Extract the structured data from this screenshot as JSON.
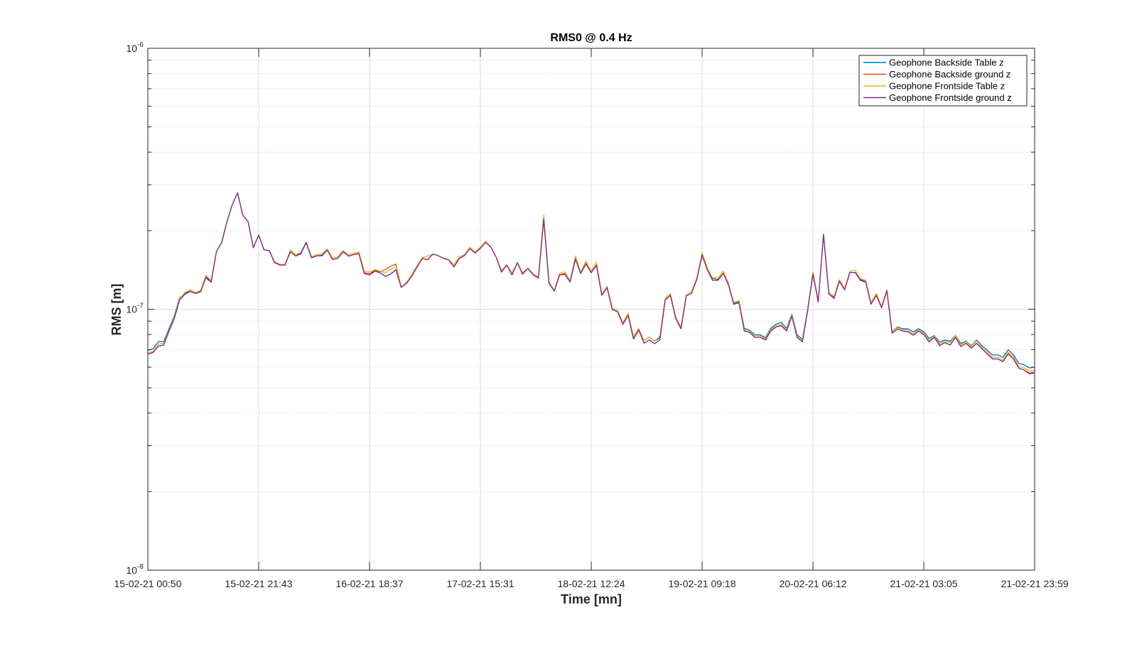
{
  "chart_data": {
    "type": "line",
    "title": "RMS0 @ 0.4 Hz",
    "xlabel": "Time [mn]",
    "ylabel": "RMS [m]",
    "yscale": "log",
    "ylim": [
      1e-08,
      1e-06
    ],
    "y_ticks": [
      {
        "value": 1e-06,
        "base": "10",
        "exp": "-6"
      },
      {
        "value": 1e-07,
        "base": "10",
        "exp": "-7"
      },
      {
        "value": 1e-08,
        "base": "10",
        "exp": "-8"
      }
    ],
    "x_tick_labels": [
      "15-02-21 00:50",
      "15-02-21 21:43",
      "16-02-21 18:37",
      "17-02-21 15:31",
      "18-02-21 12:24",
      "19-02-21 09:18",
      "20-02-21 06:12",
      "21-02-21 03:05",
      "21-02-21 23:59"
    ],
    "grid": true,
    "legend_position": "top-right",
    "x": [
      0,
      1,
      2,
      3,
      4,
      5,
      6,
      7,
      8,
      9,
      10,
      11,
      12,
      13,
      14,
      15,
      16,
      17,
      18,
      19,
      20,
      21,
      22,
      23,
      24,
      25,
      26,
      27,
      28,
      29,
      30,
      31,
      32,
      33,
      34,
      35,
      36,
      37,
      38,
      39,
      40,
      41,
      42,
      43,
      44,
      45,
      46,
      47,
      48,
      49,
      50,
      51,
      52,
      53,
      54,
      55,
      56,
      57,
      58,
      59,
      60,
      61,
      62,
      63,
      64,
      65,
      66,
      67,
      68,
      69,
      70,
      71,
      72,
      73,
      74,
      75,
      76,
      77,
      78,
      79,
      80,
      81,
      82,
      83,
      84,
      85,
      86,
      87,
      88,
      89,
      90,
      91,
      92,
      93,
      94,
      95,
      96,
      97,
      98,
      99,
      100,
      101,
      102,
      103,
      104,
      105,
      106,
      107,
      108,
      109,
      110,
      111,
      112,
      113,
      114,
      115,
      116,
      117,
      118,
      119,
      120,
      121,
      122,
      123,
      124,
      125,
      126,
      127,
      128,
      129,
      130,
      131,
      132,
      133,
      134,
      135,
      136,
      137,
      138,
      139,
      140,
      141,
      142,
      143,
      144,
      145,
      146,
      147,
      148,
      149,
      150,
      151,
      152,
      153,
      154,
      155,
      156,
      157,
      158,
      159,
      160,
      161,
      162,
      163,
      164,
      165,
      166,
      167,
      168
    ],
    "series": [
      {
        "name": "Geophone Backside Table z",
        "color": "#0072BD",
        "values": [
          6.96e-08,
          7.06e-08,
          7.51e-08,
          7.51e-08,
          8.42e-08,
          9.41e-08,
          1.104e-07,
          1.151e-07,
          1.174e-07,
          1.152e-07,
          1.174e-07,
          1.336e-07,
          1.276e-07,
          1.665e-07,
          1.804e-07,
          2.166e-07,
          2.518e-07,
          2.792e-07,
          2.289e-07,
          2.165e-07,
          1.72e-07,
          1.927e-07,
          1.69e-07,
          1.678e-07,
          1.52e-07,
          1.487e-07,
          1.487e-07,
          1.661e-07,
          1.6e-07,
          1.628e-07,
          1.804e-07,
          1.582e-07,
          1.601e-07,
          1.601e-07,
          1.684e-07,
          1.55e-07,
          1.569e-07,
          1.661e-07,
          1.599e-07,
          1.619e-07,
          1.639e-07,
          1.371e-07,
          1.353e-07,
          1.399e-07,
          1.381e-07,
          1.337e-07,
          1.364e-07,
          1.417e-07,
          1.213e-07,
          1.256e-07,
          1.339e-07,
          1.451e-07,
          1.567e-07,
          1.547e-07,
          1.626e-07,
          1.606e-07,
          1.567e-07,
          1.547e-07,
          1.453e-07,
          1.567e-07,
          1.607e-07,
          1.707e-07,
          1.643e-07,
          1.712e-07,
          1.805e-07,
          1.73e-07,
          1.582e-07,
          1.388e-07,
          1.476e-07,
          1.354e-07,
          1.509e-07,
          1.363e-07,
          1.436e-07,
          1.353e-07,
          1.318e-07,
          2.218e-07,
          1.259e-07,
          1.174e-07,
          1.354e-07,
          1.361e-07,
          1.272e-07,
          1.558e-07,
          1.372e-07,
          1.491e-07,
          1.381e-07,
          1.473e-07,
          1.131e-07,
          1.21e-07,
          9.97e-08,
          9.78e-08,
          8.76e-08,
          9.48e-08,
          7.7e-08,
          8.33e-08,
          7.6e-08,
          7.82e-08,
          7.54e-08,
          7.78e-08,
          1.086e-07,
          1.131e-07,
          9.23e-08,
          8.42e-08,
          1.125e-07,
          1.151e-07,
          1.301e-07,
          1.615e-07,
          1.415e-07,
          1.31e-07,
          1.301e-07,
          1.373e-07,
          1.24e-07,
          1.055e-07,
          1.07e-07,
          8.45e-08,
          8.31e-08,
          7.98e-08,
          7.98e-08,
          7.78e-08,
          8.45e-08,
          8.76e-08,
          8.91e-08,
          8.45e-08,
          9.59e-08,
          7.98e-08,
          7.67e-08,
          1.001e-07,
          1.367e-07,
          1.066e-07,
          1.937e-07,
          1.164e-07,
          1.11e-07,
          1.283e-07,
          1.187e-07,
          1.384e-07,
          1.384e-07,
          1.301e-07,
          1.283e-07,
          1.055e-07,
          1.131e-07,
          1.023e-07,
          1.177e-07,
          8.2e-08,
          8.55e-08,
          8.42e-08,
          8.42e-08,
          8.18e-08,
          8.42e-08,
          8.2e-08,
          7.73e-08,
          7.93e-08,
          7.48e-08,
          7.62e-08,
          7.54e-08,
          7.93e-08,
          7.39e-08,
          7.54e-08,
          7.24e-08,
          7.62e-08,
          7.24e-08,
          6.97e-08,
          6.68e-08,
          6.68e-08,
          6.54e-08,
          7e-08,
          6.68e-08,
          6.2e-08,
          6.12e-08,
          5.96e-08,
          6e-08
        ]
      },
      {
        "name": "Geophone Backside ground z",
        "color": "#D95319",
        "values": [
          6.72e-08,
          6.83e-08,
          7.22e-08,
          7.29e-08,
          8.22e-08,
          9.19e-08,
          1.082e-07,
          1.14e-07,
          1.17e-07,
          1.15e-07,
          1.166e-07,
          1.32e-07,
          1.27e-07,
          1.665e-07,
          1.804e-07,
          2.166e-07,
          2.518e-07,
          2.792e-07,
          2.289e-07,
          2.165e-07,
          1.72e-07,
          1.927e-07,
          1.69e-07,
          1.678e-07,
          1.51e-07,
          1.477e-07,
          1.477e-07,
          1.661e-07,
          1.6e-07,
          1.64e-07,
          1.792e-07,
          1.575e-07,
          1.601e-07,
          1.61e-07,
          1.684e-07,
          1.55e-07,
          1.569e-07,
          1.661e-07,
          1.599e-07,
          1.619e-07,
          1.639e-07,
          1.381e-07,
          1.37e-07,
          1.409e-07,
          1.391e-07,
          1.42e-07,
          1.46e-07,
          1.49e-07,
          1.213e-07,
          1.256e-07,
          1.339e-07,
          1.451e-07,
          1.567e-07,
          1.547e-07,
          1.626e-07,
          1.606e-07,
          1.567e-07,
          1.547e-07,
          1.453e-07,
          1.567e-07,
          1.607e-07,
          1.707e-07,
          1.643e-07,
          1.712e-07,
          1.805e-07,
          1.73e-07,
          1.582e-07,
          1.388e-07,
          1.476e-07,
          1.354e-07,
          1.509e-07,
          1.363e-07,
          1.436e-07,
          1.353e-07,
          1.318e-07,
          2.218e-07,
          1.259e-07,
          1.174e-07,
          1.354e-07,
          1.371e-07,
          1.272e-07,
          1.568e-07,
          1.372e-07,
          1.501e-07,
          1.381e-07,
          1.483e-07,
          1.131e-07,
          1.21e-07,
          9.97e-08,
          9.78e-08,
          8.76e-08,
          9.48e-08,
          7.7e-08,
          8.33e-08,
          7.41e-08,
          7.62e-08,
          7.38e-08,
          7.62e-08,
          1.086e-07,
          1.131e-07,
          9.23e-08,
          8.42e-08,
          1.125e-07,
          1.151e-07,
          1.301e-07,
          1.615e-07,
          1.415e-07,
          1.29e-07,
          1.29e-07,
          1.373e-07,
          1.24e-07,
          1.045e-07,
          1.06e-07,
          8.25e-08,
          8.15e-08,
          7.8e-08,
          7.8e-08,
          7.62e-08,
          8.25e-08,
          8.55e-08,
          8.65e-08,
          8.25e-08,
          9.4e-08,
          7.8e-08,
          7.5e-08,
          9.9e-08,
          1.367e-07,
          1.066e-07,
          1.937e-07,
          1.145e-07,
          1.1e-07,
          1.283e-07,
          1.187e-07,
          1.384e-07,
          1.384e-07,
          1.29e-07,
          1.27e-07,
          1.045e-07,
          1.131e-07,
          1.013e-07,
          1.177e-07,
          8.1e-08,
          8.4e-08,
          8.25e-08,
          8.2e-08,
          7.95e-08,
          8.25e-08,
          8e-08,
          7.5e-08,
          7.8e-08,
          7.25e-08,
          7.45e-08,
          7.3e-08,
          7.8e-08,
          7.2e-08,
          7.4e-08,
          7.1e-08,
          7.4e-08,
          7.05e-08,
          6.75e-08,
          6.45e-08,
          6.45e-08,
          6.3e-08,
          6.75e-08,
          6.45e-08,
          5.95e-08,
          5.85e-08,
          5.7e-08,
          5.75e-08
        ]
      },
      {
        "name": "Geophone Frontside Table z",
        "color": "#EDB120",
        "values": [
          6.8e-08,
          6.9e-08,
          7.35e-08,
          7.4e-08,
          8.3e-08,
          9.3e-08,
          1.095e-07,
          1.16e-07,
          1.19e-07,
          1.16e-07,
          1.18e-07,
          1.35e-07,
          1.29e-07,
          1.665e-07,
          1.804e-07,
          2.166e-07,
          2.518e-07,
          2.792e-07,
          2.289e-07,
          2.165e-07,
          1.72e-07,
          1.927e-07,
          1.69e-07,
          1.678e-07,
          1.52e-07,
          1.487e-07,
          1.487e-07,
          1.69e-07,
          1.62e-07,
          1.65e-07,
          1.804e-07,
          1.59e-07,
          1.62e-07,
          1.63e-07,
          1.7e-07,
          1.57e-07,
          1.59e-07,
          1.68e-07,
          1.62e-07,
          1.64e-07,
          1.66e-07,
          1.4e-07,
          1.39e-07,
          1.42e-07,
          1.4e-07,
          1.38e-07,
          1.42e-07,
          1.46e-07,
          1.213e-07,
          1.27e-07,
          1.36e-07,
          1.47e-07,
          1.58e-07,
          1.6e-07,
          1.626e-07,
          1.606e-07,
          1.567e-07,
          1.547e-07,
          1.48e-07,
          1.59e-07,
          1.62e-07,
          1.73e-07,
          1.66e-07,
          1.73e-07,
          1.82e-07,
          1.73e-07,
          1.582e-07,
          1.41e-07,
          1.476e-07,
          1.38e-07,
          1.509e-07,
          1.38e-07,
          1.436e-07,
          1.37e-07,
          1.33e-07,
          2.3e-07,
          1.27e-07,
          1.18e-07,
          1.37e-07,
          1.39e-07,
          1.29e-07,
          1.6e-07,
          1.39e-07,
          1.53e-07,
          1.4e-07,
          1.52e-07,
          1.14e-07,
          1.225e-07,
          1.01e-07,
          9.9e-08,
          8.9e-08,
          9.65e-08,
          7.85e-08,
          8.45e-08,
          7.6e-08,
          7.8e-08,
          7.55e-08,
          7.9e-08,
          1.1e-07,
          1.15e-07,
          9.35e-08,
          8.55e-08,
          1.14e-07,
          1.17e-07,
          1.32e-07,
          1.65e-07,
          1.44e-07,
          1.32e-07,
          1.32e-07,
          1.4e-07,
          1.26e-07,
          1.06e-07,
          1.08e-07,
          8.35e-08,
          8.25e-08,
          7.9e-08,
          7.9e-08,
          7.7e-08,
          8.35e-08,
          8.65e-08,
          8.75e-08,
          8.35e-08,
          9.55e-08,
          7.9e-08,
          7.6e-08,
          1e-07,
          1.39e-07,
          1.08e-07,
          1.937e-07,
          1.16e-07,
          1.12e-07,
          1.3e-07,
          1.2e-07,
          1.4e-07,
          1.41e-07,
          1.31e-07,
          1.29e-07,
          1.06e-07,
          1.15e-07,
          1.03e-07,
          1.19e-07,
          8.2e-08,
          8.5e-08,
          8.35e-08,
          8.3e-08,
          8.05e-08,
          8.35e-08,
          8.1e-08,
          7.6e-08,
          7.9e-08,
          7.35e-08,
          7.55e-08,
          7.45e-08,
          7.9e-08,
          7.3e-08,
          7.5e-08,
          7.2e-08,
          7.55e-08,
          7.15e-08,
          6.85e-08,
          6.55e-08,
          6.55e-08,
          6.4e-08,
          6.85e-08,
          6.55e-08,
          6.05e-08,
          5.95e-08,
          5.8e-08,
          5.85e-08
        ]
      },
      {
        "name": "Geophone Frontside ground z",
        "color": "#7E2F8E",
        "values": [
          6.72e-08,
          6.83e-08,
          7.22e-08,
          7.29e-08,
          8.22e-08,
          9.19e-08,
          1.082e-07,
          1.14e-07,
          1.17e-07,
          1.15e-07,
          1.166e-07,
          1.32e-07,
          1.27e-07,
          1.665e-07,
          1.804e-07,
          2.166e-07,
          2.518e-07,
          2.792e-07,
          2.289e-07,
          2.165e-07,
          1.72e-07,
          1.927e-07,
          1.69e-07,
          1.678e-07,
          1.51e-07,
          1.477e-07,
          1.477e-07,
          1.661e-07,
          1.6e-07,
          1.64e-07,
          1.804e-07,
          1.575e-07,
          1.601e-07,
          1.61e-07,
          1.684e-07,
          1.55e-07,
          1.569e-07,
          1.661e-07,
          1.599e-07,
          1.619e-07,
          1.63e-07,
          1.371e-07,
          1.353e-07,
          1.399e-07,
          1.381e-07,
          1.337e-07,
          1.364e-07,
          1.417e-07,
          1.213e-07,
          1.256e-07,
          1.339e-07,
          1.451e-07,
          1.567e-07,
          1.547e-07,
          1.626e-07,
          1.606e-07,
          1.567e-07,
          1.547e-07,
          1.453e-07,
          1.567e-07,
          1.607e-07,
          1.707e-07,
          1.643e-07,
          1.712e-07,
          1.805e-07,
          1.73e-07,
          1.582e-07,
          1.388e-07,
          1.476e-07,
          1.354e-07,
          1.509e-07,
          1.363e-07,
          1.436e-07,
          1.353e-07,
          1.318e-07,
          2.218e-07,
          1.259e-07,
          1.174e-07,
          1.354e-07,
          1.361e-07,
          1.272e-07,
          1.558e-07,
          1.372e-07,
          1.491e-07,
          1.381e-07,
          1.473e-07,
          1.131e-07,
          1.21e-07,
          9.97e-08,
          9.78e-08,
          8.76e-08,
          9.48e-08,
          7.7e-08,
          8.33e-08,
          7.41e-08,
          7.62e-08,
          7.38e-08,
          7.62e-08,
          1.086e-07,
          1.131e-07,
          9.23e-08,
          8.42e-08,
          1.125e-07,
          1.151e-07,
          1.301e-07,
          1.615e-07,
          1.415e-07,
          1.29e-07,
          1.29e-07,
          1.373e-07,
          1.24e-07,
          1.045e-07,
          1.06e-07,
          8.25e-08,
          8.15e-08,
          7.8e-08,
          7.8e-08,
          7.62e-08,
          8.25e-08,
          8.55e-08,
          8.65e-08,
          8.25e-08,
          9.4e-08,
          7.8e-08,
          7.5e-08,
          9.9e-08,
          1.367e-07,
          1.066e-07,
          1.937e-07,
          1.145e-07,
          1.1e-07,
          1.283e-07,
          1.187e-07,
          1.384e-07,
          1.384e-07,
          1.29e-07,
          1.27e-07,
          1.045e-07,
          1.131e-07,
          1.013e-07,
          1.177e-07,
          8.1e-08,
          8.4e-08,
          8.25e-08,
          8.2e-08,
          7.95e-08,
          8.25e-08,
          8e-08,
          7.5e-08,
          7.8e-08,
          7.25e-08,
          7.45e-08,
          7.3e-08,
          7.8e-08,
          7.2e-08,
          7.4e-08,
          7.1e-08,
          7.4e-08,
          7.05e-08,
          6.75e-08,
          6.45e-08,
          6.45e-08,
          6.3e-08,
          6.75e-08,
          6.45e-08,
          5.95e-08,
          5.85e-08,
          5.65e-08,
          5.7e-08
        ]
      }
    ]
  }
}
